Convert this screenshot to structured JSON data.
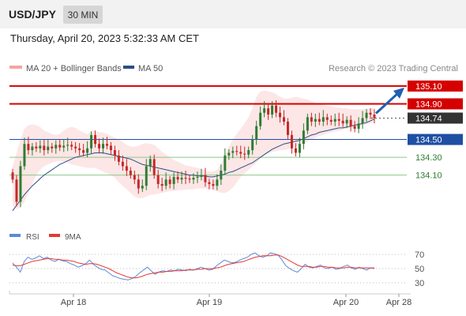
{
  "header": {
    "symbol": "USD/JPY",
    "interval": "30 MIN"
  },
  "timestamp": "Thursday, April 20, 2023 5:32:33 AM CET",
  "legend": {
    "bollinger": "MA 20 + Bollinger Bands",
    "ma50": "MA 50",
    "credit": "Research © 2023 Trading Central",
    "rsi": "RSI",
    "rsi_ma": "9MA"
  },
  "colors": {
    "up": "#2e7d32",
    "down": "#c62828",
    "resistance": "#d50000",
    "pivot": "#1e4fa3",
    "support": "#8bc88b",
    "support_text": "#2e7d32",
    "bb_fill": "#fde3e3",
    "bb_line": "#f4a4a4",
    "ma50": "#2b4d86",
    "rsi": "#5b8bd8",
    "rsi_ma": "#e53935",
    "arrow": "#1f5fb3",
    "last_box": "#333333"
  },
  "chart_data": [
    {
      "type": "candlestick",
      "x_ticks": [
        "Apr 18",
        "Apr 19",
        "Apr 20",
        "Apr 28"
      ],
      "ylim": [
        133.6,
        135.25
      ],
      "levels": [
        {
          "label": "135.10",
          "value": 135.1,
          "kind": "resistance"
        },
        {
          "label": "134.90",
          "value": 134.9,
          "kind": "resistance"
        },
        {
          "label": "134.74",
          "value": 134.74,
          "kind": "last"
        },
        {
          "label": "134.50",
          "value": 134.5,
          "kind": "pivot"
        },
        {
          "label": "134.30",
          "value": 134.3,
          "kind": "support"
        },
        {
          "label": "134.10",
          "value": 134.1,
          "kind": "support"
        }
      ],
      "closes": [
        134.05,
        133.8,
        134.2,
        134.45,
        134.38,
        134.42,
        134.4,
        134.43,
        134.38,
        134.42,
        134.4,
        134.44,
        134.41,
        134.43,
        134.44,
        134.42,
        134.4,
        134.38,
        134.35,
        134.4,
        134.55,
        134.45,
        134.4,
        134.45,
        134.43,
        134.38,
        134.32,
        134.25,
        134.2,
        134.15,
        134.1,
        134.05,
        133.95,
        133.98,
        134.2,
        134.28,
        134.1,
        134.0,
        133.98,
        134.05,
        134.0,
        134.08,
        134.05,
        134.07,
        134.06,
        134.05,
        134.07,
        134.08,
        134.1,
        134.02,
        134.0,
        133.98,
        134.05,
        134.15,
        134.32,
        134.35,
        134.37,
        134.36,
        134.34,
        134.33,
        134.38,
        134.5,
        134.65,
        134.8,
        134.85,
        134.78,
        134.88,
        134.8,
        134.75,
        134.7,
        134.55,
        134.4,
        134.35,
        134.45,
        134.6,
        134.75,
        134.7,
        134.73,
        134.7,
        134.75,
        134.72,
        134.7,
        134.73,
        134.71,
        134.68,
        134.72,
        134.65,
        134.62,
        134.68,
        134.74,
        134.8,
        134.78,
        134.74
      ],
      "ma50": [
        133.7,
        133.76,
        133.82,
        133.88,
        133.93,
        133.98,
        134.02,
        134.06,
        134.1,
        134.13,
        134.16,
        134.19,
        134.22,
        134.24,
        134.26,
        134.28,
        134.3,
        134.31,
        134.32,
        134.33,
        134.34,
        134.35,
        134.35,
        134.35,
        134.34,
        134.33,
        134.32,
        134.31,
        134.3,
        134.29,
        134.28,
        134.26,
        134.24,
        134.22,
        134.21,
        134.2,
        134.19,
        134.18,
        134.17,
        134.16,
        134.15,
        134.14,
        134.13,
        134.12,
        134.11,
        134.1,
        134.1,
        134.09,
        134.09,
        134.09,
        134.08,
        134.08,
        134.09,
        134.1,
        134.11,
        134.13,
        134.14,
        134.16,
        134.18,
        134.2,
        134.22,
        134.24,
        134.27,
        134.3,
        134.33,
        134.36,
        134.39,
        134.41,
        134.43,
        134.45,
        134.46,
        134.47,
        134.48,
        134.49,
        134.51,
        134.53,
        134.55,
        134.56,
        134.58,
        134.59,
        134.6,
        134.61,
        134.62,
        134.63,
        134.63,
        134.64,
        134.65,
        134.66,
        134.67,
        134.68,
        134.69,
        134.71,
        134.73
      ],
      "bb_upper": [
        134.2,
        134.35,
        134.5,
        134.62,
        134.66,
        134.67,
        134.66,
        134.64,
        134.6,
        134.58,
        134.56,
        134.55,
        134.56,
        134.6,
        134.63,
        134.64,
        134.63,
        134.6,
        134.58,
        134.56,
        134.6,
        134.6,
        134.58,
        134.58,
        134.56,
        134.54,
        134.52,
        134.5,
        134.47,
        134.44,
        134.42,
        134.42,
        134.43,
        134.45,
        134.46,
        134.45,
        134.44,
        134.4,
        134.36,
        134.33,
        134.3,
        134.27,
        134.25,
        134.23,
        134.21,
        134.2,
        134.19,
        134.18,
        134.17,
        134.15,
        134.14,
        134.14,
        134.16,
        134.22,
        134.32,
        134.42,
        134.5,
        134.56,
        134.62,
        134.68,
        134.75,
        134.85,
        134.98,
        135.04,
        135.05,
        135.04,
        135.03,
        135.01,
        134.98,
        134.96,
        134.96,
        134.97,
        134.98,
        134.97,
        134.96,
        134.95,
        134.93,
        134.91,
        134.9,
        134.89,
        134.88,
        134.87,
        134.86,
        134.86,
        134.85,
        134.85,
        134.84,
        134.84,
        134.84,
        134.84,
        134.85,
        134.85,
        134.86
      ],
      "bb_lower": [
        133.75,
        133.72,
        133.74,
        133.8,
        133.9,
        134.0,
        134.1,
        134.16,
        134.2,
        134.22,
        134.24,
        134.25,
        134.26,
        134.25,
        134.24,
        134.22,
        134.21,
        134.2,
        134.19,
        134.18,
        134.18,
        134.18,
        134.16,
        134.14,
        134.12,
        134.1,
        134.07,
        134.02,
        133.98,
        133.94,
        133.9,
        133.86,
        133.84,
        133.84,
        133.86,
        133.88,
        133.88,
        133.89,
        133.9,
        133.91,
        133.92,
        133.92,
        133.93,
        133.93,
        133.94,
        133.94,
        133.94,
        133.95,
        133.95,
        133.95,
        133.94,
        133.93,
        133.92,
        133.9,
        133.9,
        133.92,
        133.96,
        134.02,
        134.08,
        134.12,
        134.16,
        134.2,
        134.24,
        134.28,
        134.32,
        134.34,
        134.36,
        134.37,
        134.38,
        134.38,
        134.39,
        134.4,
        134.42,
        134.44,
        134.46,
        134.48,
        134.5,
        134.52,
        134.54,
        134.55,
        134.57,
        134.58,
        134.59,
        134.6,
        134.61,
        134.62,
        134.63,
        134.64,
        134.65,
        134.66,
        134.67,
        134.68,
        134.7
      ]
    },
    {
      "type": "line",
      "ylim": [
        20,
        80
      ],
      "y_ticks": [
        70,
        50,
        30
      ],
      "series": [
        {
          "name": "RSI",
          "values": [
            58,
            52,
            45,
            60,
            66,
            63,
            65,
            68,
            64,
            66,
            62,
            60,
            63,
            61,
            60,
            57,
            55,
            52,
            54,
            57,
            62,
            56,
            52,
            49,
            48,
            44,
            40,
            38,
            36,
            35,
            34,
            36,
            39,
            44,
            48,
            52,
            47,
            42,
            45,
            47,
            46,
            48,
            47,
            49,
            48,
            47,
            49,
            48,
            50,
            52,
            50,
            48,
            49,
            54,
            58,
            62,
            60,
            58,
            59,
            62,
            64,
            66,
            70,
            72,
            68,
            66,
            68,
            72,
            71,
            69,
            62,
            54,
            50,
            47,
            45,
            50,
            56,
            52,
            51,
            53,
            55,
            51,
            50,
            52,
            49,
            50,
            53,
            55,
            51,
            49,
            52,
            50,
            48,
            51,
            50
          ]
        },
        {
          "name": "9MA",
          "values": [
            55,
            54,
            54,
            56,
            58,
            60,
            61,
            62,
            63,
            64,
            64,
            63,
            63,
            62,
            62,
            61,
            60,
            58,
            57,
            56,
            57,
            57,
            56,
            54,
            52,
            50,
            47,
            44,
            42,
            40,
            38,
            37,
            37,
            38,
            40,
            42,
            43,
            44,
            45,
            45,
            46,
            46,
            47,
            47,
            47,
            48,
            48,
            48,
            49,
            49,
            50,
            50,
            50,
            51,
            52,
            54,
            56,
            57,
            58,
            59,
            60,
            62,
            64,
            66,
            67,
            68,
            68,
            68,
            69,
            69,
            67,
            64,
            61,
            58,
            55,
            53,
            53,
            53,
            52,
            52,
            53,
            53,
            52,
            52,
            51,
            51,
            51,
            52,
            52,
            51,
            51,
            51,
            51,
            51,
            51
          ]
        }
      ]
    }
  ]
}
